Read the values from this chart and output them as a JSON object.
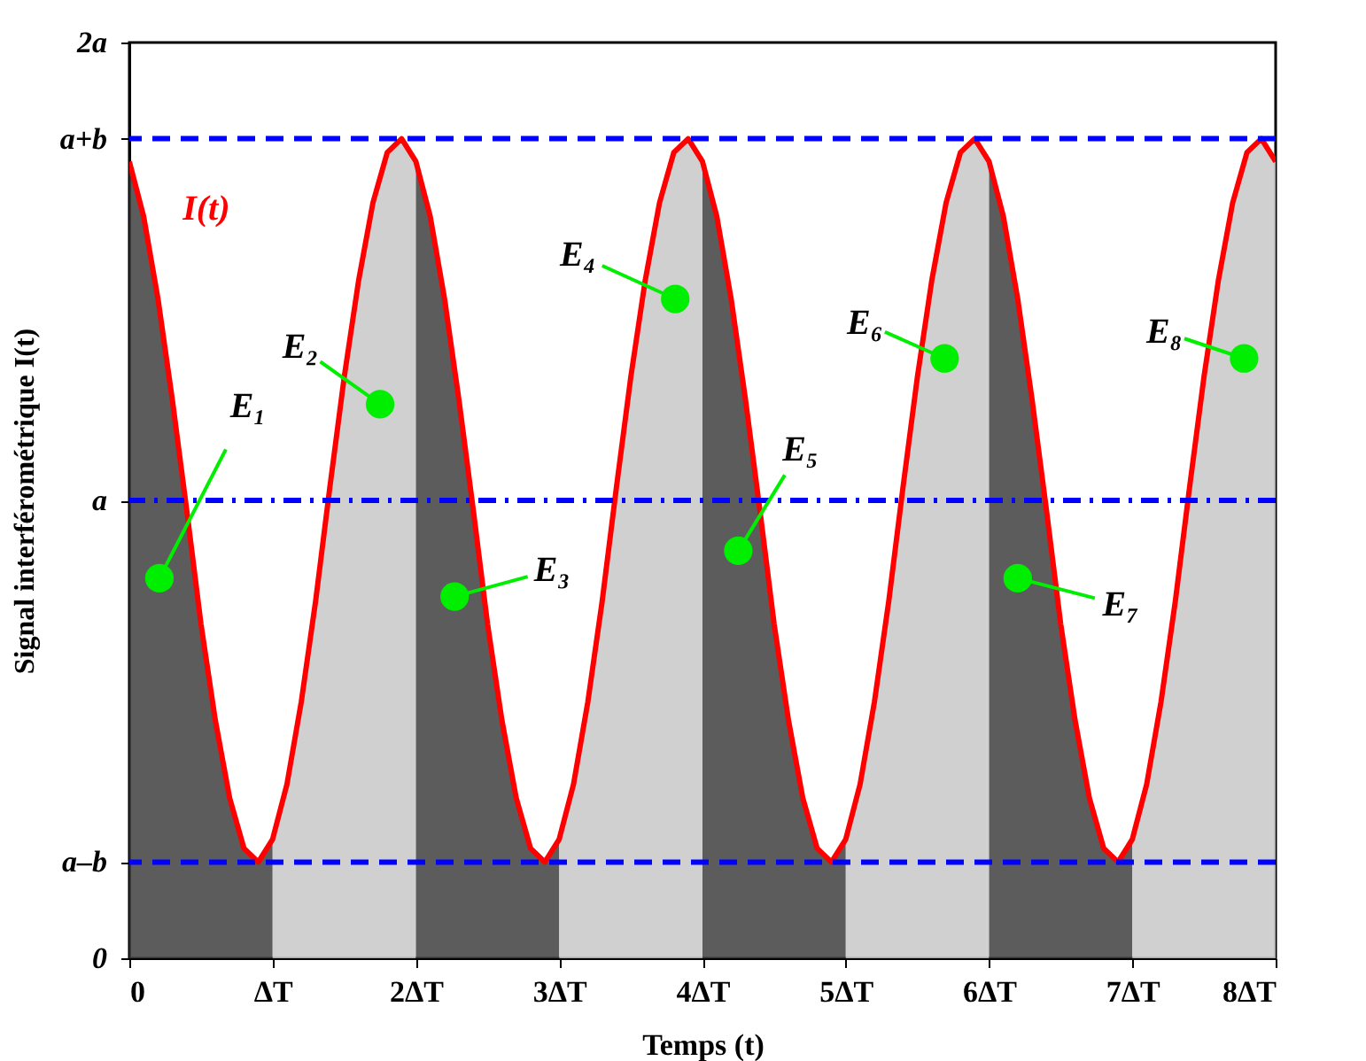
{
  "chart_data": {
    "type": "line",
    "xlabel": "Temps (t)",
    "ylabel": "Signal interférométrique I(t)",
    "xlim": [
      0,
      8
    ],
    "ylim": [
      0,
      2
    ],
    "xticks": [
      0,
      {
        "value": 1,
        "label": "ΔT"
      },
      {
        "value": 2,
        "label": "2ΔT"
      },
      {
        "value": 3,
        "label": "3ΔT"
      },
      {
        "value": 4,
        "label": "4ΔT"
      },
      {
        "value": 5,
        "label": "5ΔT"
      },
      {
        "value": 6,
        "label": "6ΔT"
      },
      {
        "value": 7,
        "label": "7ΔT"
      },
      {
        "value": 8,
        "label": "8ΔT"
      }
    ],
    "yticks": [
      0,
      {
        "value": 0.21,
        "label": "a–b"
      },
      {
        "value": 1,
        "label": "a"
      },
      {
        "value": 1.79,
        "label": "a+b"
      },
      {
        "value": 2,
        "label": "2a"
      }
    ],
    "grid": false,
    "marker": "none",
    "series": [
      {
        "type": "area",
        "color": "#404040",
        "x": [
          0,
          0.1,
          0.2,
          0.3,
          0.4,
          0.5,
          0.6,
          0.7,
          0.8,
          0.9,
          1
        ],
        "values": [
          1.74,
          1.62,
          1.44,
          1.22,
          0.98,
          0.73,
          0.52,
          0.35,
          0.24,
          0.21,
          0.26
        ]
      },
      {
        "type": "area",
        "color": "#c8c8c8",
        "x": [
          1,
          1.1,
          1.2,
          1.3,
          1.4,
          1.5,
          1.6,
          1.7,
          1.8,
          1.9,
          2
        ],
        "values": [
          0.26,
          0.38,
          0.56,
          0.78,
          1.03,
          1.27,
          1.48,
          1.65,
          1.76,
          1.79,
          1.74
        ]
      },
      {
        "type": "area",
        "color": "#404040",
        "x": [
          2,
          2.1,
          2.2,
          2.3,
          2.4,
          2.5,
          2.6,
          2.7,
          2.8,
          2.9,
          3
        ],
        "values": [
          1.74,
          1.62,
          1.44,
          1.22,
          0.98,
          0.73,
          0.52,
          0.35,
          0.24,
          0.21,
          0.26
        ]
      },
      {
        "type": "area",
        "color": "#c8c8c8",
        "x": [
          3,
          3.1,
          3.2,
          3.3,
          3.4,
          3.5,
          3.6,
          3.7,
          3.8,
          3.9,
          4
        ],
        "values": [
          0.26,
          0.38,
          0.56,
          0.78,
          1.03,
          1.27,
          1.48,
          1.65,
          1.76,
          1.79,
          1.74
        ]
      },
      {
        "type": "area",
        "color": "#404040",
        "x": [
          4,
          4.1,
          4.2,
          4.3,
          4.4,
          4.5,
          4.6,
          4.7,
          4.8,
          4.9,
          5
        ],
        "values": [
          1.74,
          1.62,
          1.44,
          1.22,
          0.98,
          0.73,
          0.52,
          0.35,
          0.24,
          0.21,
          0.26
        ]
      },
      {
        "type": "area",
        "color": "#c8c8c8",
        "x": [
          5,
          5.1,
          5.2,
          5.3,
          5.4,
          5.5,
          5.6,
          5.7,
          5.8,
          5.9,
          6
        ],
        "values": [
          0.26,
          0.38,
          0.56,
          0.78,
          1.03,
          1.27,
          1.48,
          1.65,
          1.76,
          1.79,
          1.74
        ]
      },
      {
        "type": "area",
        "color": "#404040",
        "x": [
          6,
          6.1,
          6.2,
          6.3,
          6.4,
          6.5,
          6.6,
          6.7,
          6.8,
          6.9,
          7
        ],
        "values": [
          1.74,
          1.62,
          1.44,
          1.22,
          0.98,
          0.73,
          0.52,
          0.35,
          0.24,
          0.21,
          0.26
        ]
      },
      {
        "type": "area",
        "color": "#c8c8c8",
        "x": [
          7,
          7.1,
          7.2,
          7.3,
          7.4,
          7.5,
          7.6,
          7.7,
          7.8,
          7.9,
          8
        ],
        "values": [
          0.26,
          0.38,
          0.56,
          0.78,
          1.03,
          1.27,
          1.48,
          1.65,
          1.76,
          1.79,
          1.74
        ]
      },
      {
        "name": "I(t)",
        "color": "#ff0000",
        "line_style": "solid",
        "x": [
          0,
          0.1,
          0.2,
          0.3,
          0.4,
          0.5,
          0.6,
          0.7,
          0.8,
          0.9,
          1,
          1.1,
          1.2,
          1.3,
          1.4,
          1.5,
          1.6,
          1.7,
          1.8,
          1.9,
          2,
          2.1,
          2.2,
          2.3,
          2.4,
          2.5,
          2.6,
          2.7,
          2.8,
          2.9,
          3,
          3.1,
          3.2,
          3.3,
          3.4,
          3.5,
          3.6,
          3.7,
          3.8,
          3.9,
          4,
          4.1,
          4.2,
          4.3,
          4.4,
          4.5,
          4.6,
          4.7,
          4.8,
          4.9,
          5,
          5.1,
          5.2,
          5.3,
          5.4,
          5.5,
          5.6,
          5.7,
          5.8,
          5.9,
          6,
          6.1,
          6.2,
          6.3,
          6.4,
          6.5,
          6.6,
          6.7,
          6.8,
          6.9,
          7,
          7.1,
          7.2,
          7.3,
          7.4,
          7.5,
          7.6,
          7.7,
          7.8,
          7.9,
          8
        ],
        "values": [
          1.74,
          1.62,
          1.44,
          1.22,
          0.98,
          0.73,
          0.52,
          0.35,
          0.24,
          0.21,
          0.26,
          0.38,
          0.56,
          0.78,
          1.03,
          1.27,
          1.48,
          1.65,
          1.76,
          1.79,
          1.74,
          1.62,
          1.44,
          1.22,
          0.98,
          0.73,
          0.52,
          0.35,
          0.24,
          0.21,
          0.26,
          0.38,
          0.56,
          0.78,
          1.03,
          1.27,
          1.48,
          1.65,
          1.76,
          1.79,
          1.74,
          1.62,
          1.44,
          1.22,
          0.98,
          0.73,
          0.52,
          0.35,
          0.24,
          0.21,
          0.26,
          0.38,
          0.56,
          0.78,
          1.03,
          1.27,
          1.48,
          1.65,
          1.76,
          1.79,
          1.74,
          1.62,
          1.44,
          1.22,
          0.98,
          0.73,
          0.52,
          0.35,
          0.24,
          0.21,
          0.26,
          0.38,
          0.56,
          0.78,
          1.03,
          1.27,
          1.48,
          1.65,
          1.76,
          1.79,
          1.74
        ]
      }
    ],
    "ref_lines": [
      {
        "axis": "y",
        "value": 1.79,
        "color": "#0000ff",
        "line_style": "dashed"
      },
      {
        "axis": "y",
        "value": 1,
        "color": "#0000ff",
        "line_style": "dashdot"
      },
      {
        "axis": "y",
        "value": 0.21,
        "color": "#0000ff",
        "line_style": "dashed"
      }
    ],
    "annotations": [
      {
        "text": "E₁",
        "x": 0.21,
        "y": 0.83
      },
      {
        "text": "E₂",
        "x": 1.75,
        "y": 1.21
      },
      {
        "text": "E₃",
        "x": 2.27,
        "y": 0.79
      },
      {
        "text": "E₄",
        "x": 3.81,
        "y": 1.44
      },
      {
        "text": "E₅",
        "x": 4.25,
        "y": 0.89
      },
      {
        "text": "E₆",
        "x": 5.69,
        "y": 1.31
      },
      {
        "text": "E₇",
        "x": 6.2,
        "y": 0.83
      },
      {
        "text": "E₈",
        "x": 7.78,
        "y": 1.31
      }
    ]
  }
}
